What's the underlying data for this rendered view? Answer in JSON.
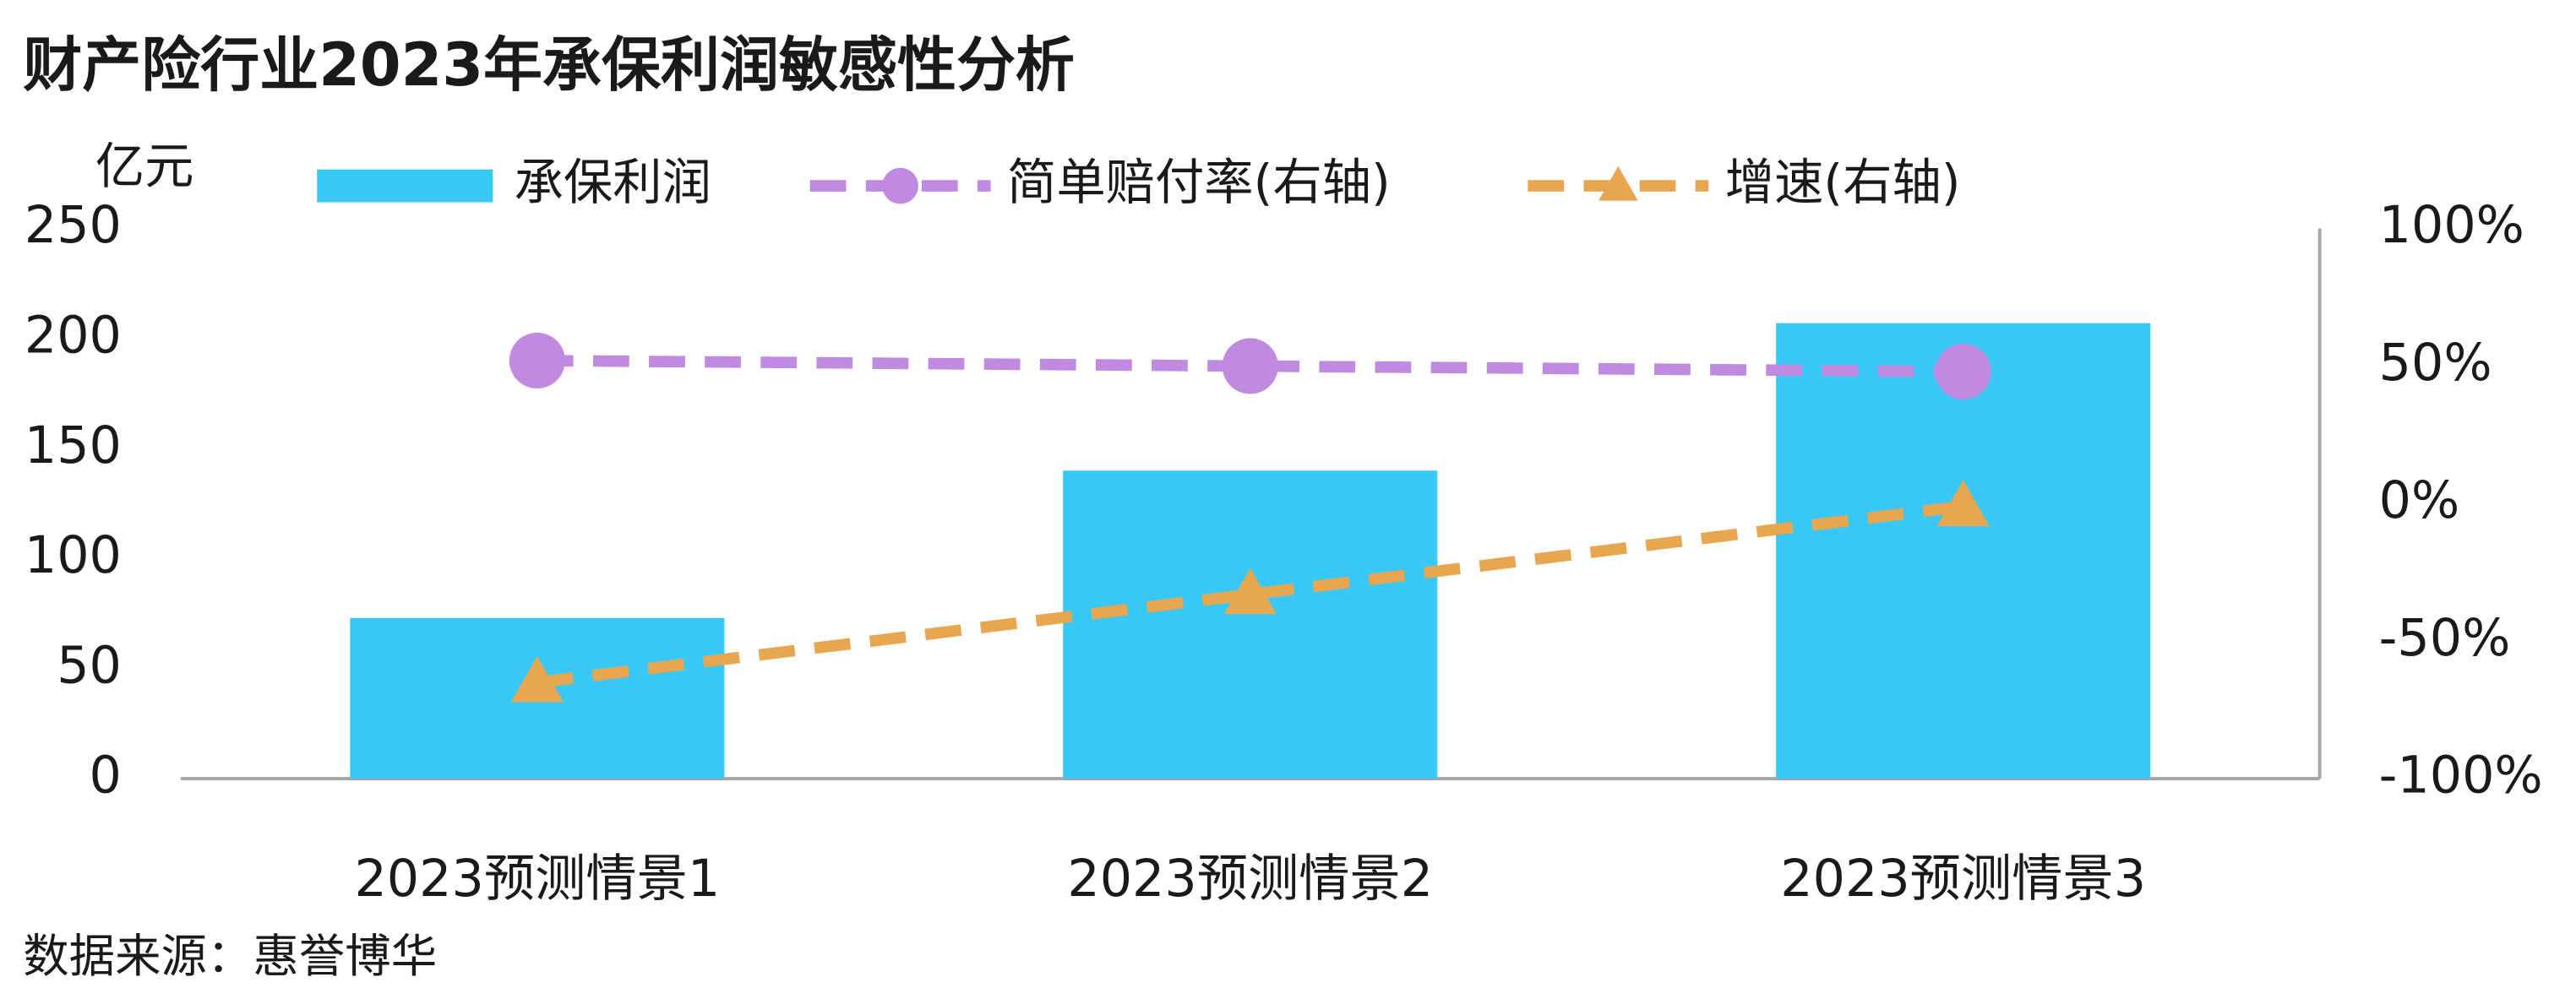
{
  "chart_data": {
    "type": "bar",
    "title": "财产险行业2023年承保利润敏感性分析",
    "y_label": "亿元",
    "source": "数据来源：惠誉博华",
    "categories": [
      "2023预测情景1",
      "2023预测情景2",
      "2023预测情景3"
    ],
    "series": [
      {
        "name": "承保利润",
        "type": "bar",
        "color": "#38c8f8",
        "values": [
          73,
          140,
          207
        ]
      },
      {
        "name": "简单赔付率(右轴)",
        "type": "line",
        "axis": "y2",
        "marker": "circle",
        "color": "#c08ae0",
        "values": [
          52,
          50,
          48
        ]
      },
      {
        "name": "增速(右轴)",
        "type": "line",
        "axis": "y2",
        "marker": "triangle",
        "color": "#e8a650",
        "values": [
          -65,
          -33,
          -1
        ]
      }
    ],
    "ylim": [
      0,
      250
    ],
    "yticks": [
      0,
      50,
      100,
      150,
      200,
      250
    ],
    "y2lim": [
      -100,
      100
    ],
    "y2ticks": [
      {
        "value": -100,
        "label": "-100%"
      },
      {
        "value": -50,
        "label": "-50%"
      },
      {
        "value": 0,
        "label": "0%"
      },
      {
        "value": 50,
        "label": "50%"
      },
      {
        "value": 100,
        "label": "100%"
      }
    ],
    "grid": false
  }
}
